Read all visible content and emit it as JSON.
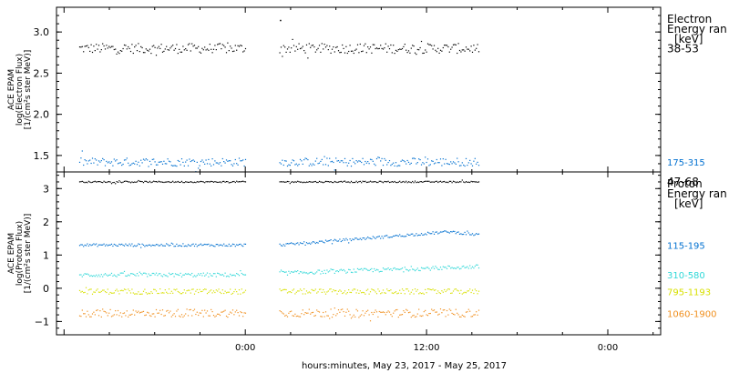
{
  "chart_data": [
    {
      "type": "scatter",
      "panel": "electron",
      "ylabel": [
        "ACE EPAM",
        "log(Electron Flux)",
        "[1/(cm²s ster MeV)]"
      ],
      "ylim": [
        1.3,
        3.3
      ],
      "yticks": [
        1.5,
        2.0,
        2.5,
        3.0
      ],
      "ytick_labels": [
        "1.5",
        "2.0",
        "2.5",
        "3.0"
      ],
      "legend_title": [
        "Electron",
        "Energy ran",
        "[keV]"
      ],
      "legend_placement": "right",
      "series": [
        {
          "name": "38-53",
          "color": "#000000",
          "level": 2.8,
          "spread": 0.06,
          "segments": [
            [
              "2017-05-23T13:00",
              "2017-05-24T00:00"
            ],
            [
              "2017-05-24T02:15",
              "2017-05-24T15:30"
            ]
          ],
          "outliers": [
            {
              "x": "2017-05-24T02:20",
              "y": 3.14
            }
          ]
        },
        {
          "name": "175-315",
          "color": "#0070d0",
          "level": 1.42,
          "spread": 0.05,
          "segments": [
            [
              "2017-05-23T13:00",
              "2017-05-24T00:00"
            ],
            [
              "2017-05-24T02:15",
              "2017-05-24T15:30"
            ]
          ]
        }
      ]
    },
    {
      "type": "scatter",
      "panel": "proton",
      "xlabel": "hours:minutes, May 23, 2017 - May 25, 2017",
      "x_ticks": [
        "2017-05-24T00:00",
        "2017-05-24T12:00",
        "2017-05-25T00:00"
      ],
      "x_tick_labels": [
        "0:00",
        "12:00",
        "0:00"
      ],
      "xlim": [
        "2017-05-23T11:30",
        "2017-05-25T03:30"
      ],
      "ylabel": [
        "ACE EPAM",
        "log(Proton Flux)",
        "[1/(cm²s ster MeV)]"
      ],
      "ylim": [
        -1.4,
        3.5
      ],
      "yticks": [
        -1,
        0,
        1,
        2,
        3
      ],
      "ytick_labels": [
        "−1",
        "0",
        "1",
        "2",
        "3"
      ],
      "legend_title": [
        "Proton",
        "Energy ran",
        "[keV]"
      ],
      "legend_placement": "right",
      "series": [
        {
          "name": "47-68",
          "color": "#000000",
          "level": 3.2,
          "spread": 0.02,
          "segments": [
            [
              "2017-05-23T13:00",
              "2017-05-24T00:00"
            ],
            [
              "2017-05-24T02:15",
              "2017-05-24T15:30"
            ]
          ]
        },
        {
          "name": "115-195",
          "color": "#0070d0",
          "level": 1.3,
          "spread": 0.04,
          "segments": [
            [
              "2017-05-23T13:00",
              "2017-05-24T00:00"
            ],
            [
              "2017-05-24T02:15",
              "2017-05-24T15:30"
            ]
          ],
          "trend": [
            {
              "x": "2017-05-24T02:15",
              "y": 1.3
            },
            {
              "x": "2017-05-24T13:30",
              "y": 1.7
            },
            {
              "x": "2017-05-24T15:30",
              "y": 1.6
            }
          ]
        },
        {
          "name": "310-580",
          "color": "#30d8d8",
          "level": 0.4,
          "spread": 0.06,
          "segments": [
            [
              "2017-05-23T13:00",
              "2017-05-24T00:00"
            ],
            [
              "2017-05-24T02:15",
              "2017-05-24T15:30"
            ]
          ],
          "trend": [
            {
              "x": "2017-05-24T02:15",
              "y": 0.45
            },
            {
              "x": "2017-05-24T15:30",
              "y": 0.65
            }
          ]
        },
        {
          "name": "795-1193",
          "color": "#d8e000",
          "level": -0.1,
          "spread": 0.08,
          "segments": [
            [
              "2017-05-23T13:00",
              "2017-05-24T00:00"
            ],
            [
              "2017-05-24T02:15",
              "2017-05-24T15:30"
            ]
          ]
        },
        {
          "name": "1060-1900",
          "color": "#f09020",
          "level": -0.75,
          "spread": 0.12,
          "segments": [
            [
              "2017-05-23T13:00",
              "2017-05-24T00:00"
            ],
            [
              "2017-05-24T02:15",
              "2017-05-24T15:30"
            ]
          ]
        }
      ]
    }
  ]
}
